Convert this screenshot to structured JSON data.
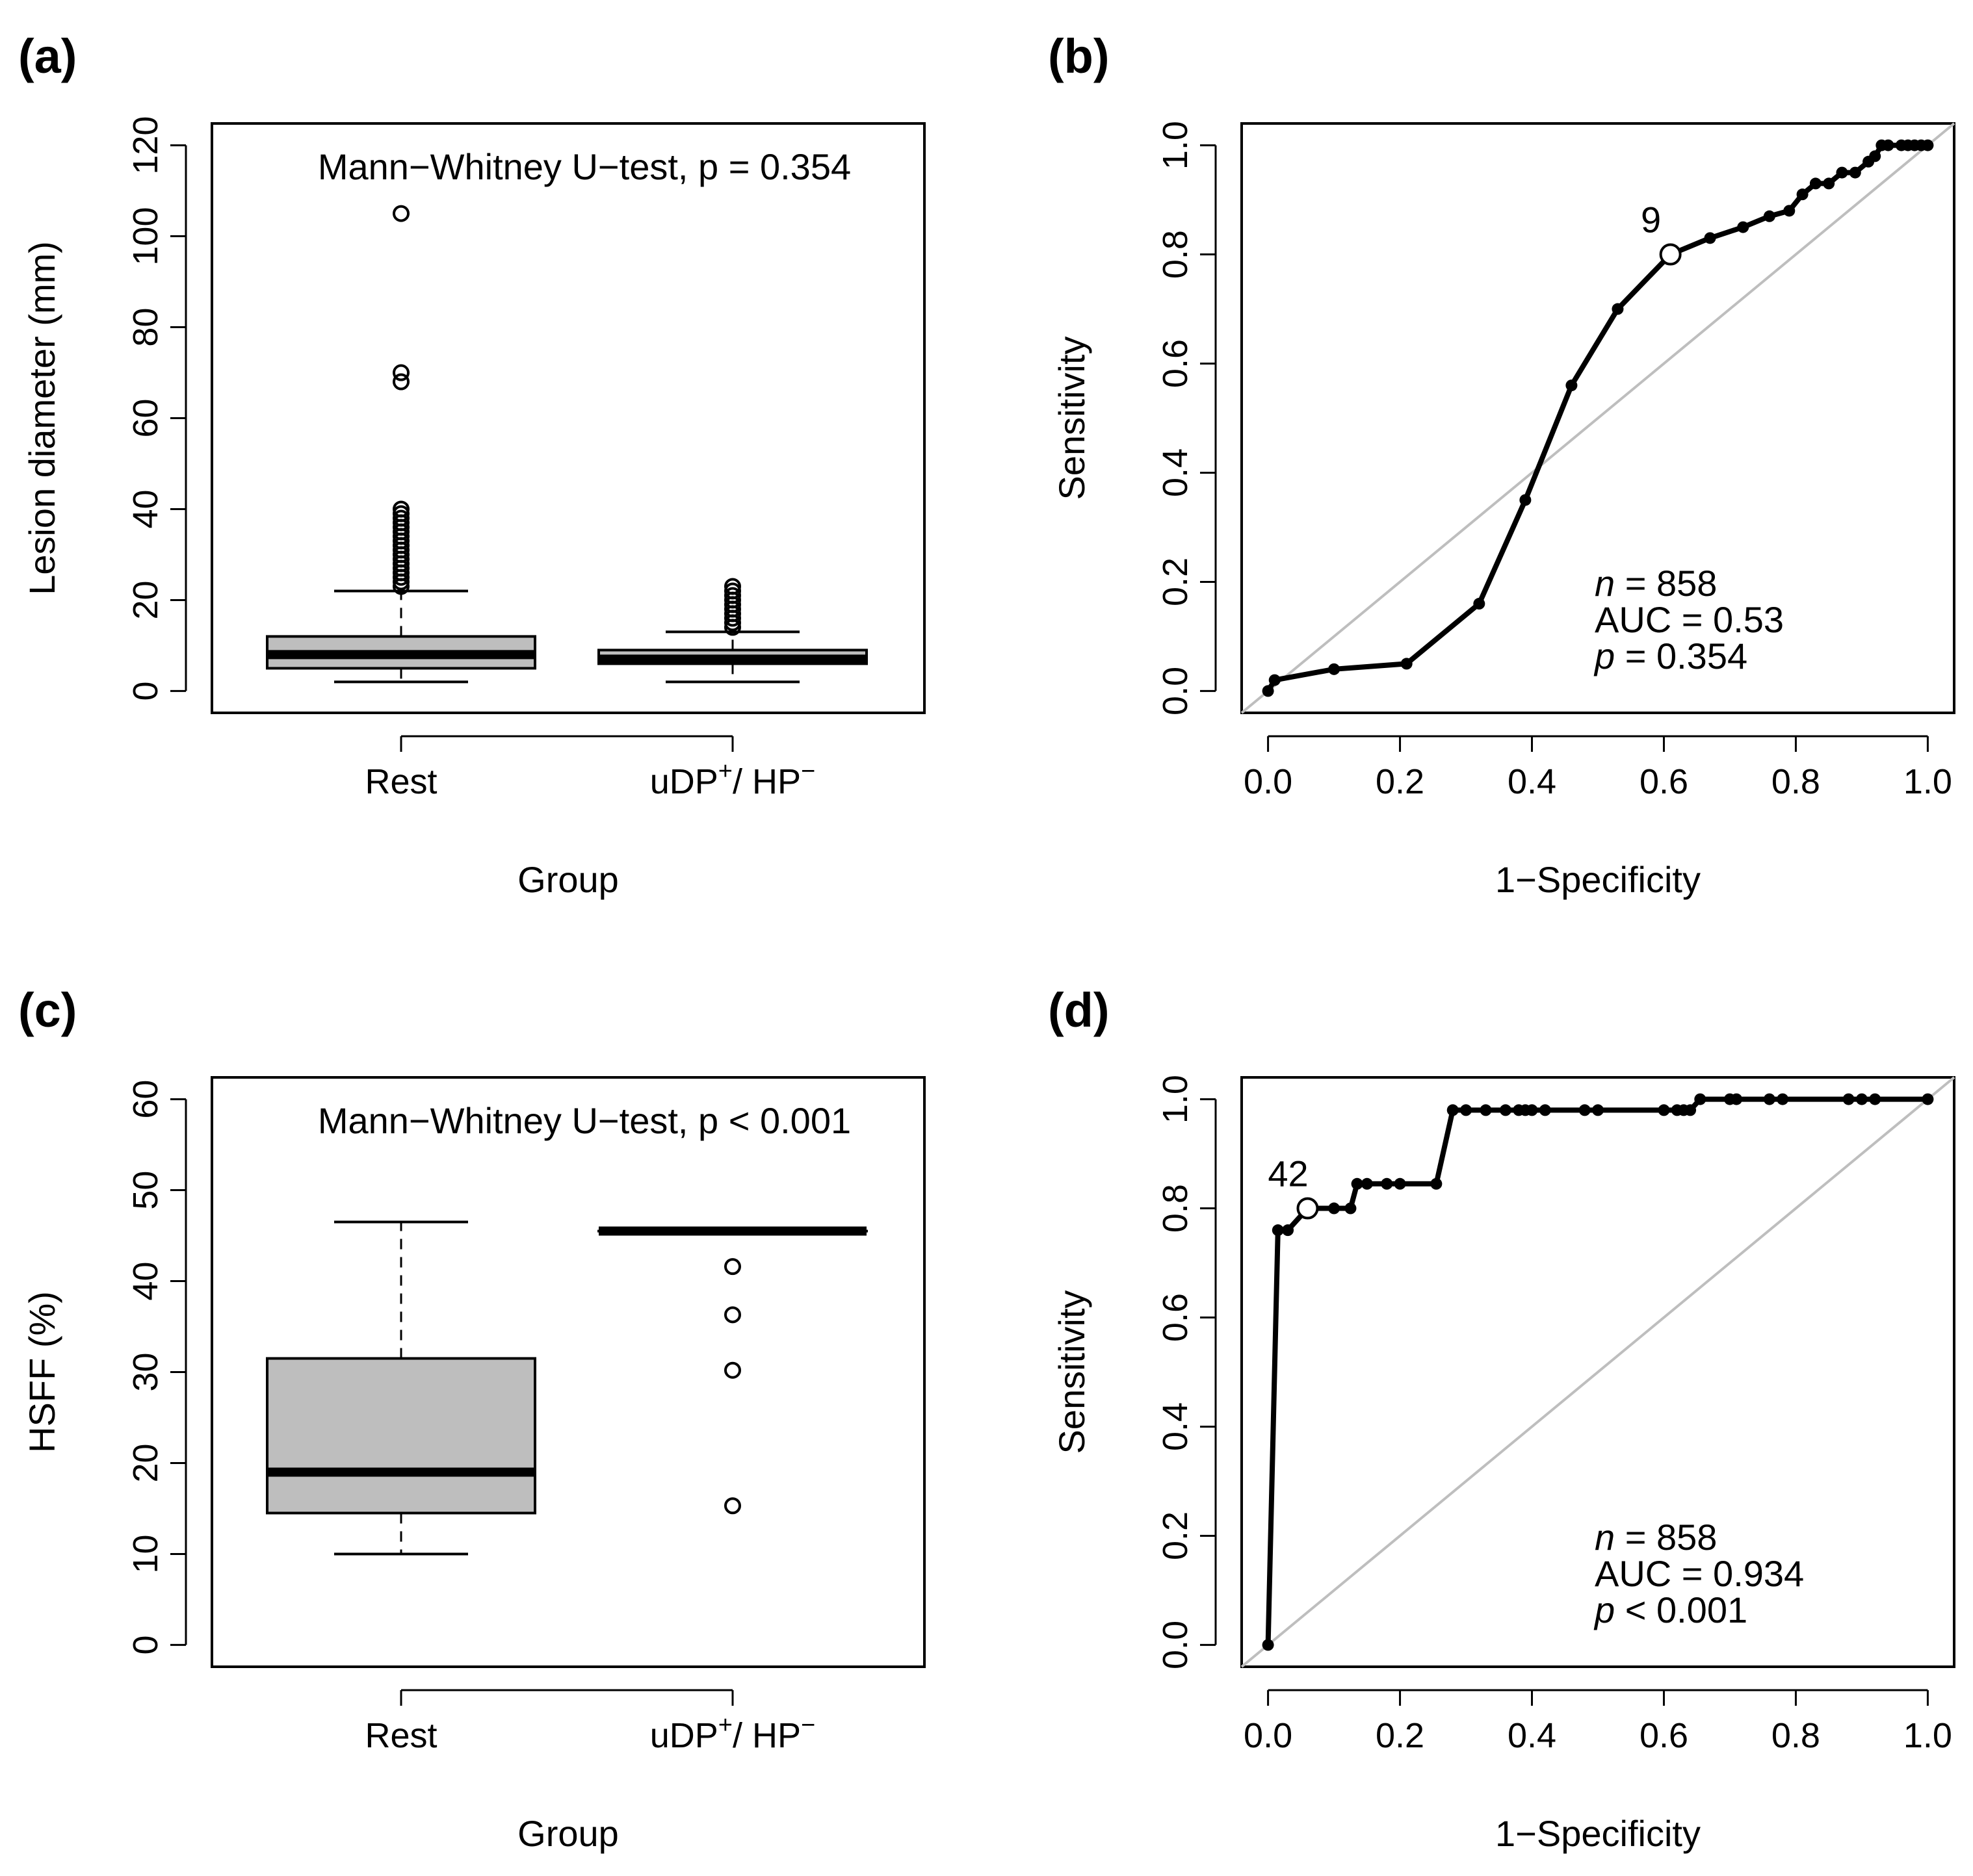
{
  "figure": {
    "panel_labels": [
      "(a)",
      "(b)",
      "(c)",
      "(d)"
    ]
  },
  "chart_data": [
    {
      "id": "a",
      "type": "box",
      "label": "(a)",
      "title": "Mann−Whitney U−test, p = 0.354",
      "xlabel": "Group",
      "ylabel": "Lesion diameter (mm)",
      "ylim": [
        0,
        120
      ],
      "yticks": [
        0,
        20,
        40,
        60,
        80,
        100,
        120
      ],
      "categories": [
        {
          "name": "Rest",
          "sup": "",
          "name2": "",
          "sup2": ""
        },
        {
          "name": "uDP",
          "sup": "+",
          "name2": "/ HP",
          "sup2": "−"
        }
      ],
      "boxes": [
        {
          "min": 2,
          "q1": 5,
          "median": 8,
          "q3": 12,
          "max": 22,
          "outliers": [
            23,
            24,
            25,
            26,
            27,
            28,
            29,
            30,
            31,
            32,
            33,
            34,
            35,
            36,
            37,
            38,
            39,
            40,
            68,
            70,
            105
          ]
        },
        {
          "min": 2,
          "q1": 6,
          "median": 7,
          "q3": 9,
          "max": 13,
          "outliers": [
            14,
            15,
            16,
            17,
            18,
            19,
            20,
            21,
            22,
            23
          ]
        }
      ],
      "colors": {
        "box_fill": "#bebebe",
        "stroke": "#000000"
      }
    },
    {
      "id": "b",
      "type": "line",
      "label": "(b)",
      "xlabel": "1−Specificity",
      "ylabel": "Sensitivity",
      "xlim": [
        0,
        1
      ],
      "ylim": [
        0,
        1
      ],
      "xticks": [
        "0.0",
        "0.2",
        "0.4",
        "0.6",
        "0.8",
        "1.0"
      ],
      "yticks": [
        "0.0",
        "0.2",
        "0.4",
        "0.6",
        "0.8",
        "1.0"
      ],
      "roc_points": [
        [
          0,
          0
        ],
        [
          0.01,
          0.02
        ],
        [
          0.1,
          0.04
        ],
        [
          0.21,
          0.05
        ],
        [
          0.32,
          0.16
        ],
        [
          0.39,
          0.35
        ],
        [
          0.46,
          0.56
        ],
        [
          0.53,
          0.7
        ],
        [
          0.61,
          0.8
        ],
        [
          0.67,
          0.83
        ],
        [
          0.72,
          0.85
        ],
        [
          0.76,
          0.87
        ],
        [
          0.79,
          0.88
        ],
        [
          0.81,
          0.91
        ],
        [
          0.83,
          0.93
        ],
        [
          0.85,
          0.93
        ],
        [
          0.87,
          0.95
        ],
        [
          0.89,
          0.95
        ],
        [
          0.91,
          0.97
        ],
        [
          0.92,
          0.98
        ],
        [
          0.93,
          1.0
        ],
        [
          0.94,
          1.0
        ],
        [
          0.96,
          1.0
        ],
        [
          0.97,
          1.0
        ],
        [
          0.98,
          1.0
        ],
        [
          0.99,
          1.0
        ],
        [
          1.0,
          1.0
        ]
      ],
      "cutoff": {
        "x": 0.61,
        "y": 0.8,
        "label": "9"
      },
      "annotation": {
        "n_label": "n",
        "n_value": " = 858",
        "auc": "AUC =  0.53",
        "p_label": "p",
        "p_value": " = 0.354"
      },
      "colors": {
        "curve": "#000000",
        "diagonal": "#bebebe"
      }
    },
    {
      "id": "c",
      "type": "box",
      "label": "(c)",
      "title": "Mann−Whitney U−test, p < 0.001",
      "xlabel": "Group",
      "ylabel": "HSFF (%)",
      "ylim": [
        0,
        60
      ],
      "yticks": [
        0,
        10,
        20,
        30,
        40,
        50,
        60
      ],
      "categories": [
        {
          "name": "Rest",
          "sup": "",
          "name2": "",
          "sup2": ""
        },
        {
          "name": "uDP",
          "sup": "+",
          "name2": "/ HP",
          "sup2": "−"
        }
      ],
      "boxes": [
        {
          "min": 10,
          "q1": 14.5,
          "median": 19,
          "q3": 31.5,
          "max": 46.5,
          "outliers": []
        },
        {
          "min": 45.5,
          "q1": 45.5,
          "median": 45.5,
          "q3": 45.5,
          "max": 45.5,
          "outliers": [
            15.3,
            30.2,
            36.3,
            41.6
          ]
        }
      ],
      "colors": {
        "box_fill": "#bebebe",
        "stroke": "#000000"
      }
    },
    {
      "id": "d",
      "type": "line",
      "label": "(d)",
      "xlabel": "1−Specificity",
      "ylabel": "Sensitivity",
      "xlim": [
        0,
        1
      ],
      "ylim": [
        0,
        1
      ],
      "xticks": [
        "0.0",
        "0.2",
        "0.4",
        "0.6",
        "0.8",
        "1.0"
      ],
      "yticks": [
        "0.0",
        "0.2",
        "0.4",
        "0.6",
        "0.8",
        "1.0"
      ],
      "roc_points": [
        [
          0,
          0
        ],
        [
          0.015,
          0.76
        ],
        [
          0.03,
          0.76
        ],
        [
          0.06,
          0.8
        ],
        [
          0.1,
          0.8
        ],
        [
          0.125,
          0.8
        ],
        [
          0.135,
          0.845
        ],
        [
          0.15,
          0.845
        ],
        [
          0.18,
          0.845
        ],
        [
          0.2,
          0.845
        ],
        [
          0.255,
          0.845
        ],
        [
          0.28,
          0.98
        ],
        [
          0.3,
          0.98
        ],
        [
          0.33,
          0.98
        ],
        [
          0.36,
          0.98
        ],
        [
          0.38,
          0.98
        ],
        [
          0.39,
          0.98
        ],
        [
          0.4,
          0.98
        ],
        [
          0.42,
          0.98
        ],
        [
          0.48,
          0.98
        ],
        [
          0.5,
          0.98
        ],
        [
          0.6,
          0.98
        ],
        [
          0.62,
          0.98
        ],
        [
          0.63,
          0.98
        ],
        [
          0.64,
          0.98
        ],
        [
          0.655,
          1.0
        ],
        [
          0.7,
          1.0
        ],
        [
          0.71,
          1.0
        ],
        [
          0.76,
          1.0
        ],
        [
          0.78,
          1.0
        ],
        [
          0.88,
          1.0
        ],
        [
          0.9,
          1.0
        ],
        [
          0.92,
          1.0
        ],
        [
          1.0,
          1.0
        ]
      ],
      "cutoff": {
        "x": 0.06,
        "y": 0.8,
        "label": "42"
      },
      "annotation": {
        "n_label": "n",
        "n_value": " = 858",
        "auc": "AUC =  0.934",
        "p_label": "p",
        "p_value": " < 0.001"
      },
      "colors": {
        "curve": "#000000",
        "diagonal": "#bebebe"
      }
    }
  ]
}
